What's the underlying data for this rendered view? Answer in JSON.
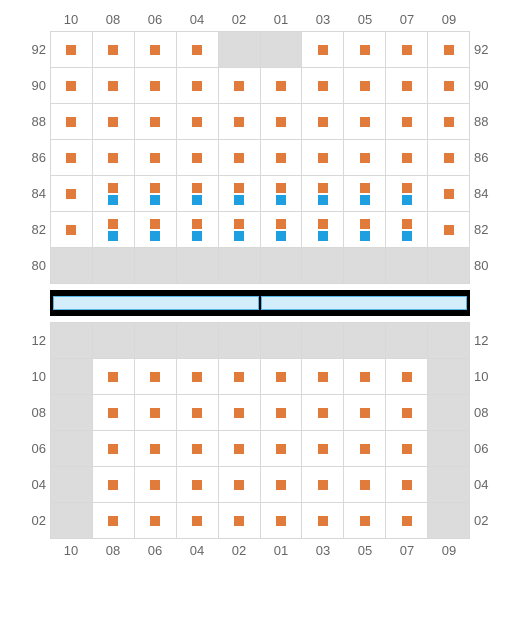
{
  "colors": {
    "seat_orange": "#e07b3c",
    "seat_blue": "#1ea0e0",
    "cell_grey": "#dcdcdc",
    "cell_white": "#ffffff",
    "grid_border": "#d8d8d8",
    "label_text": "#666666",
    "divider_bg": "#000000",
    "divider_strip_fill": "#d4edfb",
    "divider_strip_border": "#57b7e6"
  },
  "columns": [
    "10",
    "08",
    "06",
    "04",
    "02",
    "01",
    "03",
    "05",
    "07",
    "09"
  ],
  "section_top": {
    "rowLabels": [
      "92",
      "90",
      "88",
      "86",
      "84",
      "82",
      "80"
    ],
    "rows": [
      [
        {
          "s": [
            "o"
          ]
        },
        {
          "s": [
            "o"
          ]
        },
        {
          "s": [
            "o"
          ]
        },
        {
          "s": [
            "o"
          ]
        },
        {
          "g": true
        },
        {
          "g": true
        },
        {
          "s": [
            "o"
          ]
        },
        {
          "s": [
            "o"
          ]
        },
        {
          "s": [
            "o"
          ]
        },
        {
          "s": [
            "o"
          ]
        }
      ],
      [
        {
          "s": [
            "o"
          ]
        },
        {
          "s": [
            "o"
          ]
        },
        {
          "s": [
            "o"
          ]
        },
        {
          "s": [
            "o"
          ]
        },
        {
          "s": [
            "o"
          ]
        },
        {
          "s": [
            "o"
          ]
        },
        {
          "s": [
            "o"
          ]
        },
        {
          "s": [
            "o"
          ]
        },
        {
          "s": [
            "o"
          ]
        },
        {
          "s": [
            "o"
          ]
        }
      ],
      [
        {
          "s": [
            "o"
          ]
        },
        {
          "s": [
            "o"
          ]
        },
        {
          "s": [
            "o"
          ]
        },
        {
          "s": [
            "o"
          ]
        },
        {
          "s": [
            "o"
          ]
        },
        {
          "s": [
            "o"
          ]
        },
        {
          "s": [
            "o"
          ]
        },
        {
          "s": [
            "o"
          ]
        },
        {
          "s": [
            "o"
          ]
        },
        {
          "s": [
            "o"
          ]
        }
      ],
      [
        {
          "s": [
            "o"
          ]
        },
        {
          "s": [
            "o"
          ]
        },
        {
          "s": [
            "o"
          ]
        },
        {
          "s": [
            "o"
          ]
        },
        {
          "s": [
            "o"
          ]
        },
        {
          "s": [
            "o"
          ]
        },
        {
          "s": [
            "o"
          ]
        },
        {
          "s": [
            "o"
          ]
        },
        {
          "s": [
            "o"
          ]
        },
        {
          "s": [
            "o"
          ]
        }
      ],
      [
        {
          "s": [
            "o"
          ]
        },
        {
          "s": [
            "o",
            "b"
          ]
        },
        {
          "s": [
            "o",
            "b"
          ]
        },
        {
          "s": [
            "o",
            "b"
          ]
        },
        {
          "s": [
            "o",
            "b"
          ]
        },
        {
          "s": [
            "o",
            "b"
          ]
        },
        {
          "s": [
            "o",
            "b"
          ]
        },
        {
          "s": [
            "o",
            "b"
          ]
        },
        {
          "s": [
            "o",
            "b"
          ]
        },
        {
          "s": [
            "o"
          ]
        }
      ],
      [
        {
          "s": [
            "o"
          ]
        },
        {
          "s": [
            "o",
            "b"
          ]
        },
        {
          "s": [
            "o",
            "b"
          ]
        },
        {
          "s": [
            "o",
            "b"
          ]
        },
        {
          "s": [
            "o",
            "b"
          ]
        },
        {
          "s": [
            "o",
            "b"
          ]
        },
        {
          "s": [
            "o",
            "b"
          ]
        },
        {
          "s": [
            "o",
            "b"
          ]
        },
        {
          "s": [
            "o",
            "b"
          ]
        },
        {
          "s": [
            "o"
          ]
        }
      ],
      [
        {
          "g": true
        },
        {
          "g": true
        },
        {
          "g": true
        },
        {
          "g": true
        },
        {
          "g": true
        },
        {
          "g": true
        },
        {
          "g": true
        },
        {
          "g": true
        },
        {
          "g": true
        },
        {
          "g": true
        }
      ]
    ]
  },
  "section_bottom": {
    "rowLabels": [
      "12",
      "10",
      "08",
      "06",
      "04",
      "02"
    ],
    "rows": [
      [
        {
          "g": true
        },
        {
          "g": true
        },
        {
          "g": true
        },
        {
          "g": true
        },
        {
          "g": true
        },
        {
          "g": true
        },
        {
          "g": true
        },
        {
          "g": true
        },
        {
          "g": true
        },
        {
          "g": true
        }
      ],
      [
        {
          "g": true
        },
        {
          "s": [
            "o"
          ]
        },
        {
          "s": [
            "o"
          ]
        },
        {
          "s": [
            "o"
          ]
        },
        {
          "s": [
            "o"
          ]
        },
        {
          "s": [
            "o"
          ]
        },
        {
          "s": [
            "o"
          ]
        },
        {
          "s": [
            "o"
          ]
        },
        {
          "s": [
            "o"
          ]
        },
        {
          "g": true
        }
      ],
      [
        {
          "g": true
        },
        {
          "s": [
            "o"
          ]
        },
        {
          "s": [
            "o"
          ]
        },
        {
          "s": [
            "o"
          ]
        },
        {
          "s": [
            "o"
          ]
        },
        {
          "s": [
            "o"
          ]
        },
        {
          "s": [
            "o"
          ]
        },
        {
          "s": [
            "o"
          ]
        },
        {
          "s": [
            "o"
          ]
        },
        {
          "g": true
        }
      ],
      [
        {
          "g": true
        },
        {
          "s": [
            "o"
          ]
        },
        {
          "s": [
            "o"
          ]
        },
        {
          "s": [
            "o"
          ]
        },
        {
          "s": [
            "o"
          ]
        },
        {
          "s": [
            "o"
          ]
        },
        {
          "s": [
            "o"
          ]
        },
        {
          "s": [
            "o"
          ]
        },
        {
          "s": [
            "o"
          ]
        },
        {
          "g": true
        }
      ],
      [
        {
          "g": true
        },
        {
          "s": [
            "o"
          ]
        },
        {
          "s": [
            "o"
          ]
        },
        {
          "s": [
            "o"
          ]
        },
        {
          "s": [
            "o"
          ]
        },
        {
          "s": [
            "o"
          ]
        },
        {
          "s": [
            "o"
          ]
        },
        {
          "s": [
            "o"
          ]
        },
        {
          "s": [
            "o"
          ]
        },
        {
          "g": true
        }
      ],
      [
        {
          "g": true
        },
        {
          "s": [
            "o"
          ]
        },
        {
          "s": [
            "o"
          ]
        },
        {
          "s": [
            "o"
          ]
        },
        {
          "s": [
            "o"
          ]
        },
        {
          "s": [
            "o"
          ]
        },
        {
          "s": [
            "o"
          ]
        },
        {
          "s": [
            "o"
          ]
        },
        {
          "s": [
            "o"
          ]
        },
        {
          "g": true
        }
      ]
    ]
  },
  "divider_strips": 2
}
